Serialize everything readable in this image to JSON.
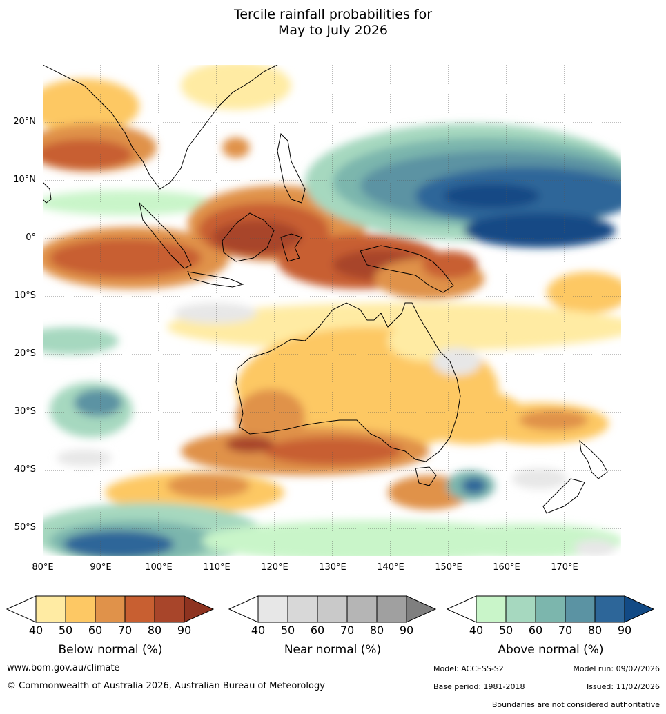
{
  "title": {
    "line1": "Tercile rainfall probabilities for",
    "line2": "May to July 2026"
  },
  "axes": {
    "lat_labels": [
      "20°N",
      "10°N",
      "0°",
      "10°S",
      "20°S",
      "30°S",
      "40°S",
      "50°S"
    ],
    "lon_labels": [
      "80°E",
      "90°E",
      "100°E",
      "110°E",
      "120°E",
      "130°E",
      "140°E",
      "150°E",
      "160°E",
      "170°E"
    ]
  },
  "legend": {
    "ticks": [
      "40",
      "50",
      "60",
      "70",
      "80",
      "90"
    ],
    "below": {
      "label": "Below normal (%)",
      "colors": [
        "#ffeba3",
        "#fdc864",
        "#e0924a",
        "#c85f31",
        "#a8452a",
        "#8e3320"
      ]
    },
    "near": {
      "label": "Near normal (%)",
      "colors": [
        "#e7e7e7",
        "#d8d8d8",
        "#c9c9c9",
        "#b5b5b5",
        "#a0a0a0",
        "#7f7f7f"
      ]
    },
    "above": {
      "label": "Above normal (%)",
      "colors": [
        "#c9f5c9",
        "#a6d8bf",
        "#7cb6ad",
        "#5b93a3",
        "#2d6699",
        "#124a85"
      ]
    }
  },
  "footer": {
    "website": "www.bom.gov.au/climate",
    "copyright": "© Commonwealth of Australia 2026, Australian Bureau of Meteorology",
    "model": "Model: ACCESS-S2",
    "model_run": "Model run: 09/02/2026",
    "base_period": "Base period: 1981-2018",
    "issued": "Issued: 11/02/2026",
    "disclaimer": "Boundaries are not considered authoritative"
  }
}
